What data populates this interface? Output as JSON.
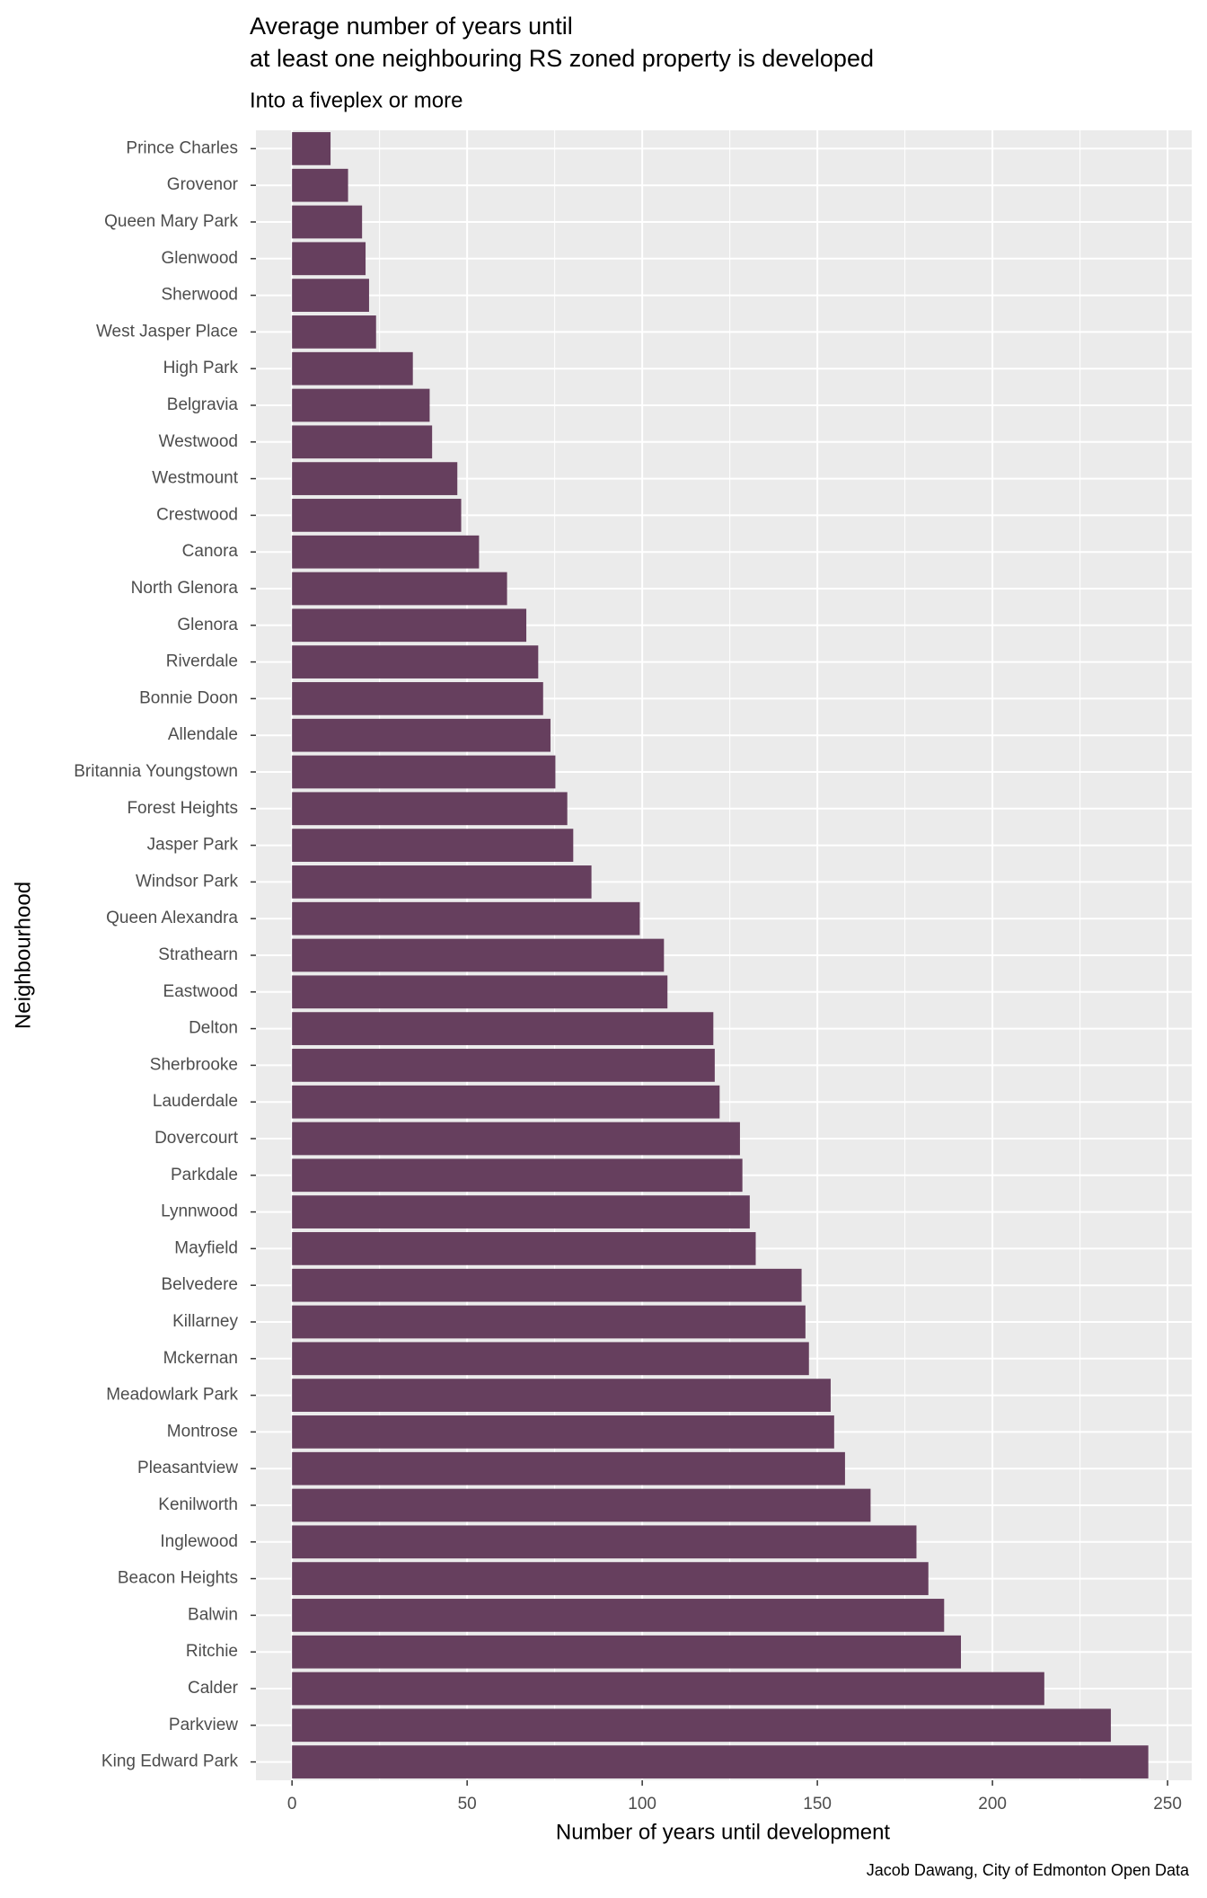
{
  "chart_data": {
    "type": "bar",
    "orientation": "horizontal",
    "title": [
      "Average number of years until",
      "at least one neighbouring RS zoned property is developed"
    ],
    "subtitle": "Into a fiveplex or more",
    "x_label": "Number of years until development",
    "y_label": "Neighbourhood",
    "caption": "Jacob Dawang, City of Edmonton Open Data",
    "categories": [
      "Prince Charles",
      "Grovenor",
      "Queen Mary Park",
      "Glenwood",
      "Sherwood",
      "West Jasper Place",
      "High Park",
      "Belgravia",
      "Westwood",
      "Westmount",
      "Crestwood",
      "Canora",
      "North Glenora",
      "Glenora",
      "Riverdale",
      "Bonnie Doon",
      "Allendale",
      "Britannia Youngstown",
      "Forest Heights",
      "Jasper Park",
      "Windsor Park",
      "Queen Alexandra",
      "Strathearn",
      "Eastwood",
      "Delton",
      "Sherbrooke",
      "Lauderdale",
      "Dovercourt",
      "Parkdale",
      "Lynnwood",
      "Mayfield",
      "Belvedere",
      "Killarney",
      "Mckernan",
      "Meadowlark Park",
      "Montrose",
      "Pleasantview",
      "Kenilworth",
      "Inglewood",
      "Beacon Heights",
      "Balwin",
      "Ritchie",
      "Calder",
      "Parkview",
      "King Edward Park"
    ],
    "values": [
      11,
      16,
      20,
      21,
      22,
      24,
      34.5,
      39.3,
      40,
      47.2,
      48.3,
      53.4,
      61.4,
      66.9,
      70.3,
      71.7,
      73.8,
      75.2,
      78.6,
      80.3,
      85.5,
      99.3,
      106.2,
      107.2,
      120.3,
      120.7,
      122.1,
      127.9,
      128.6,
      130.7,
      132.4,
      145.5,
      146.6,
      147.6,
      153.8,
      154.8,
      157.9,
      165.2,
      178.3,
      181.7,
      186.2,
      191,
      214.8,
      233.8,
      244.5
    ],
    "color": "#663f5e",
    "xlim": [
      -10.3,
      256.9
    ],
    "xticks": [
      0,
      50,
      100,
      150,
      200,
      250
    ],
    "grid": true
  }
}
